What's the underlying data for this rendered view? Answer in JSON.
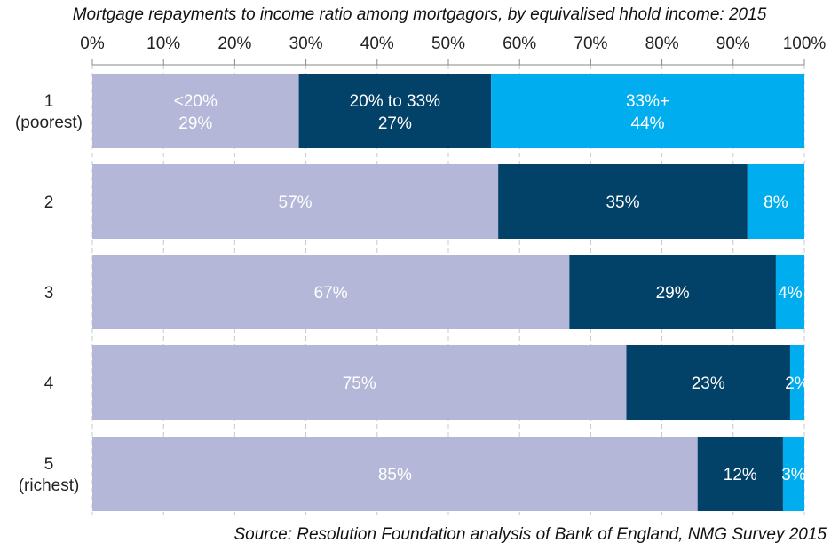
{
  "chart_data": {
    "type": "bar",
    "orientation": "horizontal",
    "stacked": "100%",
    "title": "Mortgage repayments to income ratio among mortgagors, by equivalised hhold income: 2015",
    "source": "Source: Resolution Foundation analysis of Bank of England, NMG Survey 2015",
    "categories": [
      [
        "1",
        "(poorest)"
      ],
      [
        "2"
      ],
      [
        "3"
      ],
      [
        "4"
      ],
      [
        "5",
        "(richest)"
      ]
    ],
    "xlim": [
      0,
      100
    ],
    "x_ticks": [
      "0%",
      "10%",
      "20%",
      "30%",
      "40%",
      "50%",
      "60%",
      "70%",
      "80%",
      "90%",
      "100%"
    ],
    "axis_position": "top",
    "grid": "vertical dashed",
    "legend": "inline labels on first bar",
    "series": [
      {
        "name": "<20%",
        "color": "#B4B7D7",
        "values": [
          29,
          57,
          67,
          75,
          85
        ]
      },
      {
        "name": "20% to 33%",
        "color": "#034268",
        "values": [
          27,
          35,
          29,
          23,
          12
        ]
      },
      {
        "name": "33%+",
        "color": "#00AEEF",
        "values": [
          44,
          8,
          4,
          2,
          3
        ]
      }
    ]
  }
}
